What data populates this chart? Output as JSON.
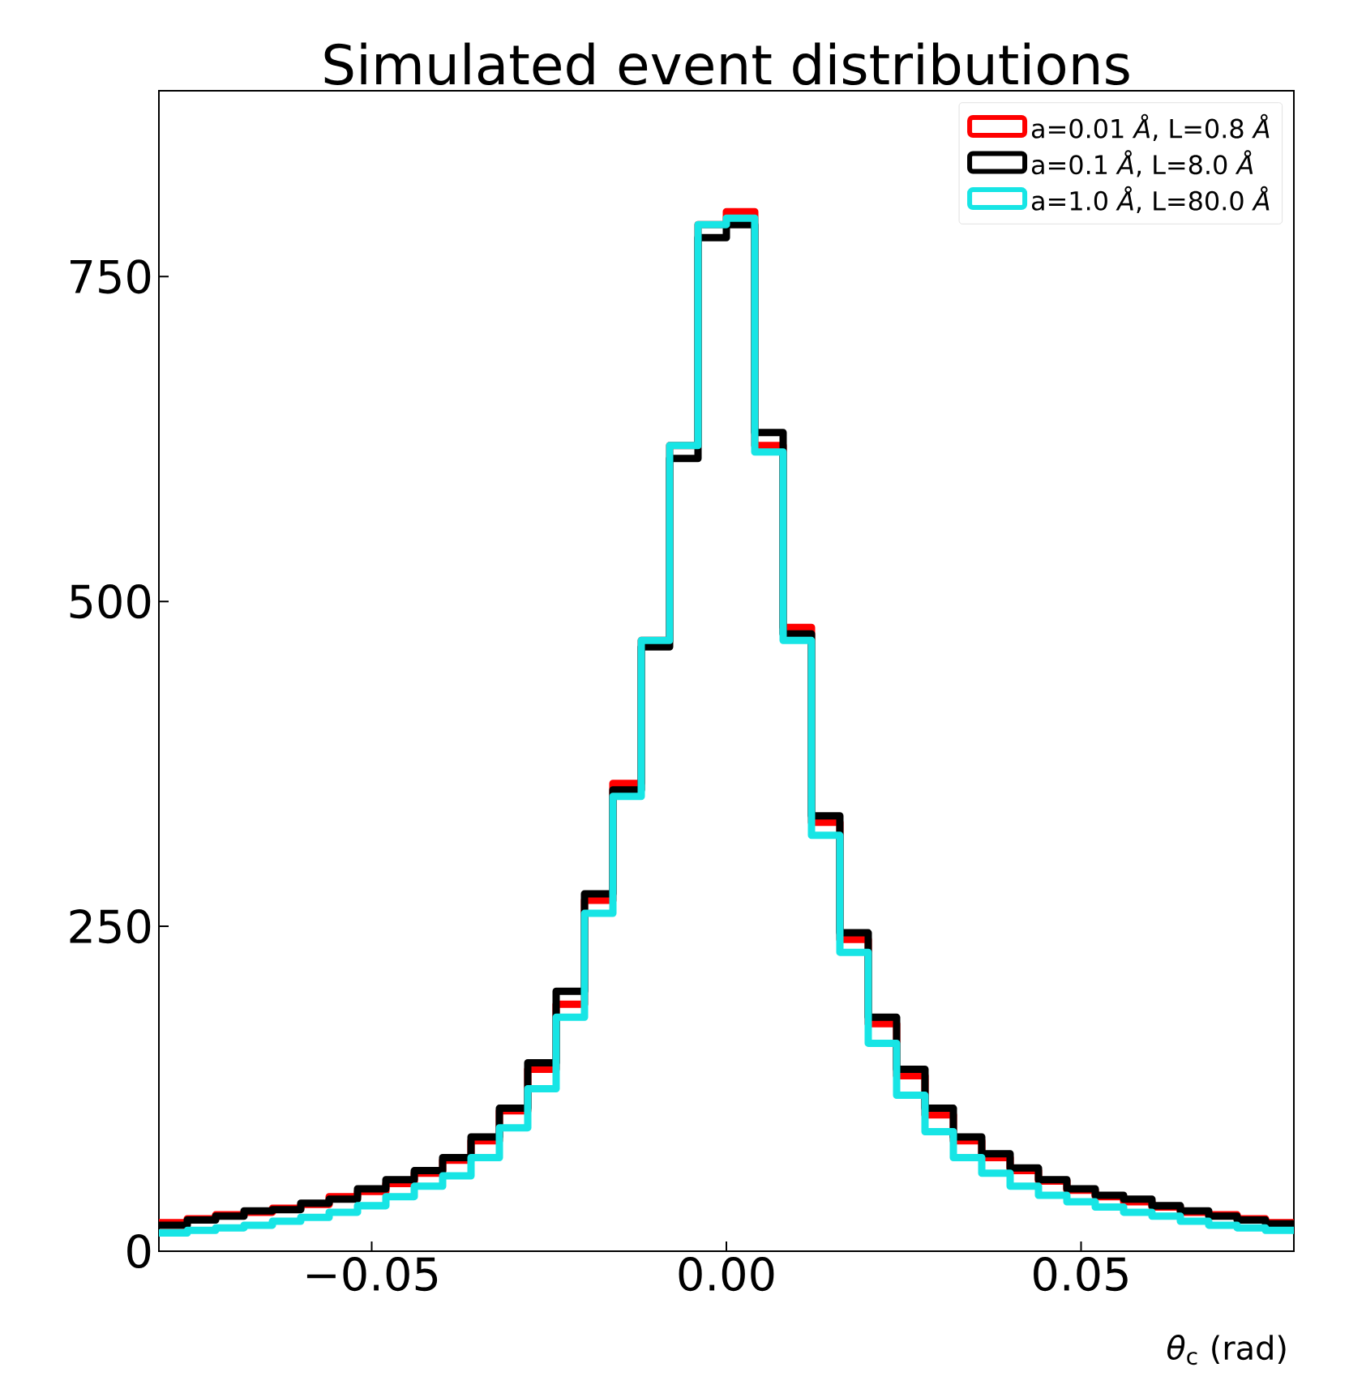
{
  "chart_data": {
    "type": "histogram",
    "title": "Simulated event distributions",
    "xlabel": "*θ*$_{c}$ (rad)",
    "bins": [
      -0.08,
      -0.076,
      -0.072,
      -0.068,
      -0.064,
      -0.06,
      -0.056,
      -0.052,
      -0.048,
      -0.044,
      -0.04,
      -0.036,
      -0.032,
      -0.028,
      -0.024,
      -0.02,
      -0.016,
      -0.012,
      -0.008,
      -0.004,
      0,
      0.004,
      0.008,
      0.012,
      0.016,
      0.02,
      0.024,
      0.028,
      0.032,
      0.036,
      0.04,
      0.044,
      0.048,
      0.052,
      0.056,
      0.06,
      0.064,
      0.068,
      0.072,
      0.076,
      0.08
    ],
    "series": [
      {
        "name": "a=0.01 *Å*, L=0.8 *Å*",
        "color": "#ff0000",
        "values": [
          22,
          25,
          28,
          30,
          33,
          36,
          42,
          46,
          52,
          60,
          70,
          85,
          108,
          140,
          190,
          270,
          360,
          470,
          620,
          790,
          800,
          620,
          480,
          330,
          240,
          175,
          135,
          105,
          85,
          72,
          62,
          54,
          47,
          42,
          38,
          34,
          30,
          28,
          25,
          22
        ]
      },
      {
        "name": "a=0.1 *Å*, L=8.0 *Å*",
        "color": "#000000",
        "values": [
          20,
          24,
          27,
          31,
          32,
          37,
          40,
          48,
          55,
          62,
          72,
          88,
          110,
          145,
          200,
          275,
          355,
          465,
          610,
          780,
          790,
          630,
          475,
          335,
          245,
          180,
          140,
          110,
          88,
          75,
          64,
          55,
          48,
          43,
          40,
          35,
          31,
          27,
          24,
          21
        ]
      },
      {
        "name": "a=1.0 *Å*, L=80.0 *Å*",
        "color": "#17e5e5",
        "values": [
          14,
          16,
          18,
          20,
          23,
          26,
          30,
          35,
          42,
          50,
          58,
          72,
          95,
          125,
          180,
          260,
          350,
          470,
          620,
          790,
          795,
          615,
          470,
          320,
          230,
          160,
          120,
          92,
          72,
          60,
          50,
          43,
          38,
          34,
          30,
          27,
          23,
          20,
          18,
          16
        ]
      }
    ],
    "xlim": [
      -0.08,
      0.08
    ],
    "ylim": [
      0,
      893
    ],
    "xticks": [
      {
        "value": -0.05,
        "label": "−0.05"
      },
      {
        "value": 0,
        "label": "0.00"
      },
      {
        "value": 0.05,
        "label": "0.05"
      }
    ],
    "yticks": [
      0,
      250,
      500,
      750
    ],
    "legend": "top right",
    "grid": false
  }
}
